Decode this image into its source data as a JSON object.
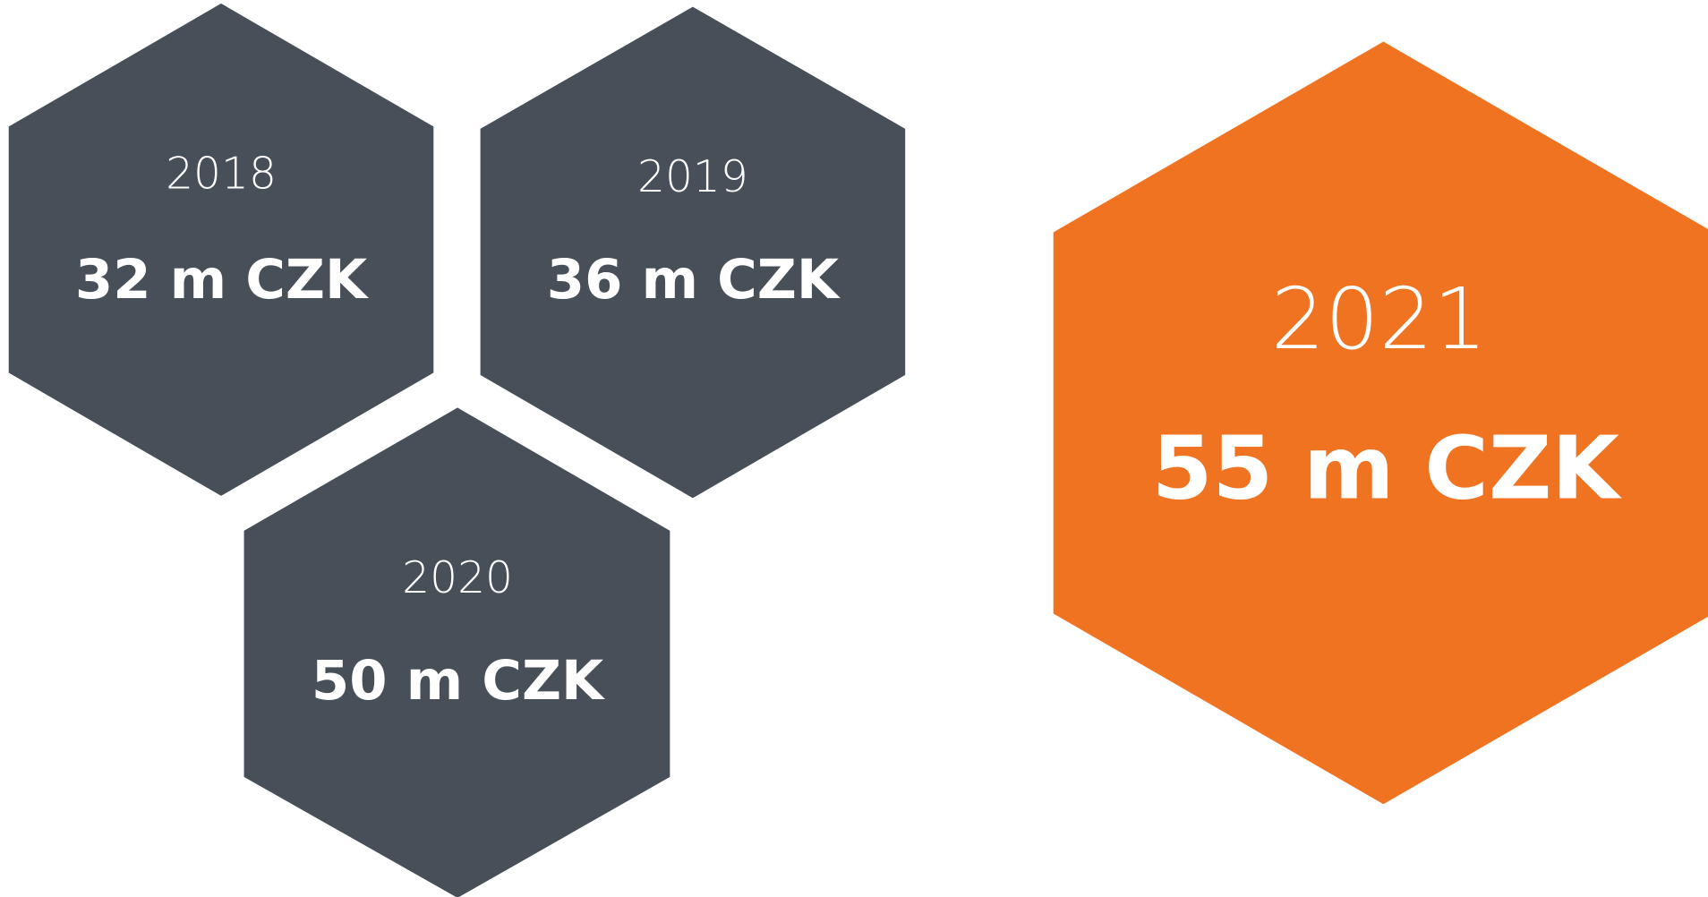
{
  "items": [
    {
      "year": "2018",
      "value": "32 m CZK"
    },
    {
      "year": "2019",
      "value": "36 m CZK"
    },
    {
      "year": "2020",
      "value": "50 m CZK"
    },
    {
      "year": "2021",
      "value": "55 m CZK"
    }
  ]
}
